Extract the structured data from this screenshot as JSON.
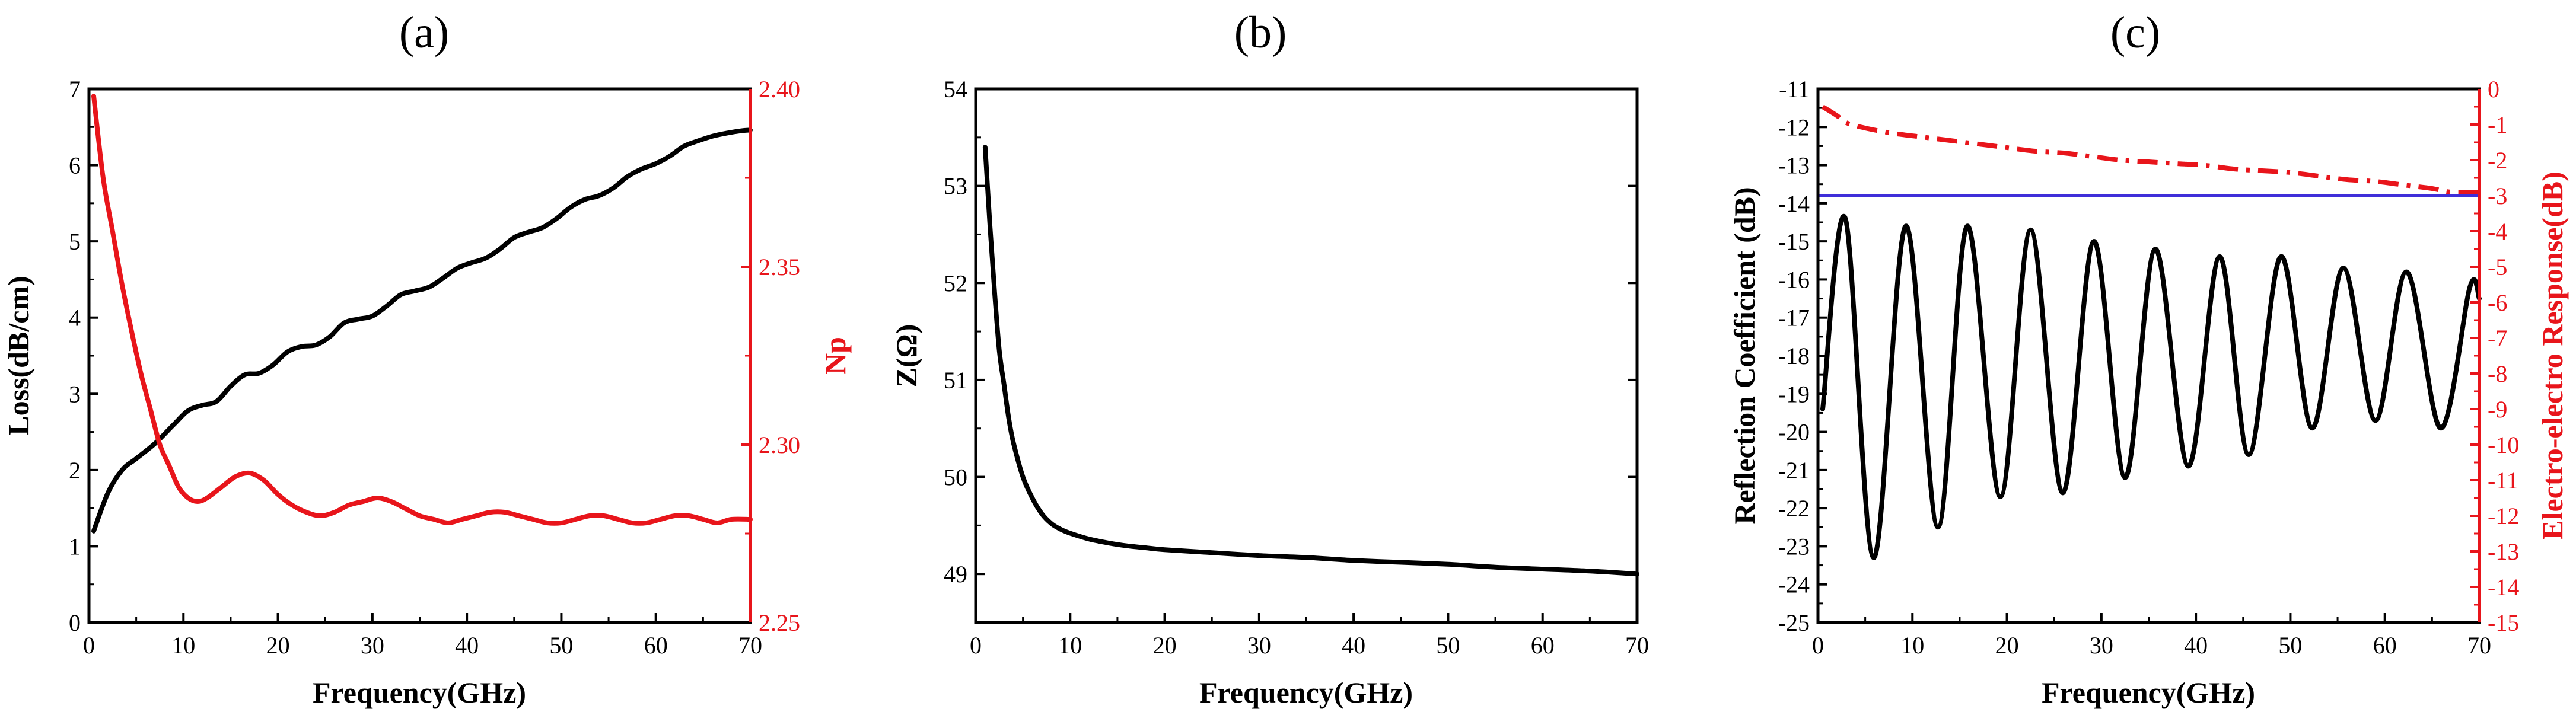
{
  "colors": {
    "black": "#000000",
    "red": "#e8151b",
    "blue": "#3f2fd9"
  },
  "chart_data": [
    {
      "type": "line",
      "title": "(a)",
      "xlabel": "Frequency(GHz)",
      "ylabel": "Loss(dB/cm)",
      "y2label": "Np",
      "xlim": [
        0,
        70
      ],
      "ylim": [
        0,
        7
      ],
      "y2lim": [
        2.25,
        2.4
      ],
      "xticks": [
        "0",
        "10",
        "20",
        "30",
        "40",
        "50",
        "60",
        "70"
      ],
      "yticks": [
        "0",
        "1",
        "2",
        "3",
        "4",
        "5",
        "6",
        "7"
      ],
      "y2ticks": [
        "2.25",
        "2.30",
        "2.35",
        "2.40"
      ],
      "grid": false,
      "series": [
        {
          "axis": "left",
          "color": "#000000",
          "x": [
            0.5,
            2,
            3.5,
            5,
            7,
            9,
            10.5,
            12,
            13.5,
            15,
            16.5,
            18,
            19.5,
            21,
            22.5,
            24,
            25.5,
            27,
            28.5,
            30,
            31.5,
            33,
            34.5,
            36,
            37.5,
            39,
            40.5,
            42,
            43.5,
            45,
            46.5,
            48,
            49.5,
            51,
            52.5,
            54,
            55.5,
            57,
            58.5,
            60,
            61.5,
            63,
            64.5,
            66,
            67.5,
            69,
            70
          ],
          "y": [
            1.2,
            1.7,
            2.0,
            2.15,
            2.35,
            2.6,
            2.78,
            2.85,
            2.9,
            3.1,
            3.25,
            3.27,
            3.38,
            3.55,
            3.62,
            3.64,
            3.75,
            3.93,
            3.98,
            4.02,
            4.15,
            4.3,
            4.35,
            4.4,
            4.52,
            4.65,
            4.72,
            4.78,
            4.9,
            5.05,
            5.12,
            5.18,
            5.3,
            5.45,
            5.55,
            5.6,
            5.7,
            5.85,
            5.95,
            6.02,
            6.12,
            6.25,
            6.32,
            6.38,
            6.42,
            6.45,
            6.46
          ]
        },
        {
          "axis": "right",
          "color": "#e8151b",
          "x": [
            0.5,
            1.5,
            2.5,
            3.5,
            4.5,
            5.5,
            6.5,
            7.5,
            8.5,
            9.5,
            10.5,
            11.5,
            12.5,
            14,
            15.5,
            17,
            18.5,
            20,
            21.5,
            23,
            24.5,
            26,
            27.5,
            29,
            30.5,
            32,
            33.5,
            35,
            36.5,
            38,
            39.5,
            41,
            42.5,
            44,
            45.5,
            47,
            48.5,
            50,
            51.5,
            53,
            54.5,
            56,
            57.5,
            59,
            60.5,
            62,
            63.5,
            65,
            66.5,
            68,
            70
          ],
          "y": [
            2.398,
            2.375,
            2.36,
            2.345,
            2.332,
            2.32,
            2.31,
            2.3,
            2.294,
            2.288,
            2.285,
            2.284,
            2.285,
            2.288,
            2.291,
            2.292,
            2.29,
            2.286,
            2.283,
            2.281,
            2.28,
            2.281,
            2.283,
            2.284,
            2.285,
            2.284,
            2.282,
            2.28,
            2.279,
            2.278,
            2.279,
            2.28,
            2.281,
            2.281,
            2.28,
            2.279,
            2.278,
            2.278,
            2.279,
            2.28,
            2.28,
            2.279,
            2.278,
            2.278,
            2.279,
            2.28,
            2.28,
            2.279,
            2.278,
            2.279,
            2.279
          ]
        }
      ]
    },
    {
      "type": "line",
      "title": "(b)",
      "xlabel": "Frequency(GHz)",
      "ylabel": "Z(Ω)",
      "xlim": [
        0,
        70
      ],
      "ylim": [
        48.5,
        54
      ],
      "xticks": [
        "0",
        "10",
        "20",
        "30",
        "40",
        "50",
        "60",
        "70"
      ],
      "yticks": [
        "49",
        "50",
        "51",
        "52",
        "53",
        "54"
      ],
      "grid": false,
      "series": [
        {
          "color": "#000000",
          "x": [
            1,
            1.5,
            2,
            2.5,
            3,
            3.5,
            4,
            5,
            6,
            7,
            8,
            9,
            10,
            12,
            14,
            16,
            18,
            20,
            25,
            30,
            35,
            40,
            45,
            50,
            55,
            60,
            65,
            70
          ],
          "y": [
            53.4,
            52.6,
            51.9,
            51.3,
            50.95,
            50.6,
            50.35,
            50.0,
            49.78,
            49.62,
            49.52,
            49.46,
            49.42,
            49.36,
            49.32,
            49.29,
            49.27,
            49.25,
            49.22,
            49.19,
            49.17,
            49.14,
            49.12,
            49.1,
            49.07,
            49.05,
            49.03,
            49.0
          ]
        }
      ]
    },
    {
      "type": "line",
      "title": "(c)",
      "xlabel": "Frequency(GHz)",
      "ylabel": "Reflection Coefficient (dB)",
      "y2label": "Electro-electro Response(dB)",
      "xlim": [
        0,
        70
      ],
      "ylim": [
        -25,
        -11
      ],
      "y2lim": [
        -15,
        0
      ],
      "xticks": [
        "0",
        "10",
        "20",
        "30",
        "40",
        "50",
        "60",
        "70"
      ],
      "yticks": [
        "-25",
        "-24",
        "-23",
        "-22",
        "-21",
        "-20",
        "-19",
        "-18",
        "-17",
        "-16",
        "-15",
        "-14",
        "-13",
        "-12",
        "-11"
      ],
      "y2ticks": [
        "-15",
        "-14",
        "-13",
        "-12",
        "-11",
        "-10",
        "-9",
        "-8",
        "-7",
        "-6",
        "-5",
        "-4",
        "-3",
        "-2",
        "-1",
        "0"
      ],
      "grid": false,
      "series": [
        {
          "axis": "left",
          "color": "#000000",
          "style": "solid",
          "x": [
            0.5,
            2.9,
            5.9,
            9.3,
            12.7,
            15.8,
            19.3,
            22.5,
            25.9,
            29.2,
            32.5,
            35.7,
            39.2,
            42.5,
            45.6,
            49,
            52.3,
            55.6,
            59,
            62.3,
            65.9,
            69,
            70
          ],
          "y": [
            -19.4,
            -14.4,
            -23.3,
            -14.6,
            -22.5,
            -14.6,
            -21.7,
            -14.7,
            -21.6,
            -15.0,
            -21.2,
            -15.2,
            -20.9,
            -15.4,
            -20.6,
            -15.4,
            -19.9,
            -15.7,
            -19.7,
            -15.8,
            -19.9,
            -16.2,
            -16.5
          ]
        },
        {
          "axis": "right",
          "color": "#e8151b",
          "style": "dashdot",
          "x": [
            0.5,
            2,
            3,
            5,
            8,
            11,
            14,
            17,
            20,
            23,
            26,
            29,
            32,
            35,
            38,
            41,
            44,
            47,
            50,
            53,
            56,
            59,
            62,
            65,
            67,
            70
          ],
          "y": [
            -0.5,
            -0.75,
            -0.95,
            -1.1,
            -1.25,
            -1.35,
            -1.45,
            -1.55,
            -1.65,
            -1.75,
            -1.8,
            -1.9,
            -2.0,
            -2.05,
            -2.1,
            -2.15,
            -2.25,
            -2.3,
            -2.35,
            -2.45,
            -2.55,
            -2.6,
            -2.7,
            -2.8,
            -2.9,
            -2.9
          ]
        },
        {
          "axis": "right",
          "color": "#3f2fd9",
          "style": "solid",
          "x": [
            0,
            70
          ],
          "y": [
            -3,
            -3
          ]
        }
      ]
    }
  ]
}
